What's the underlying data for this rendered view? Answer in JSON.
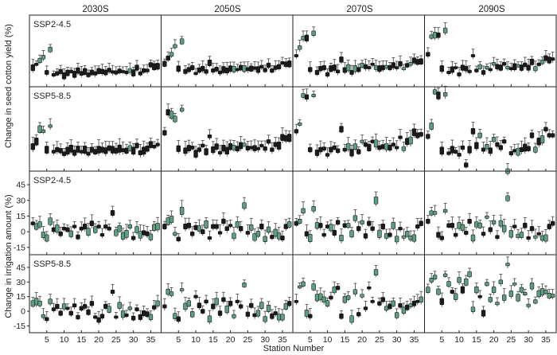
{
  "chart_data": {
    "type": "box",
    "periods": [
      "2030S",
      "2050S",
      "2070S",
      "2090S"
    ],
    "ylabel_top": "Change in seed cotton yield (%)",
    "ylabel_bottom": "Change in irrigation amount (%)",
    "xlabel": "Station Number",
    "x_ticks": [
      "5",
      "10",
      "15",
      "20",
      "25",
      "30",
      "35"
    ],
    "y_ticks": [
      "-15",
      "0",
      "15",
      "30",
      "45"
    ],
    "x_range": [
      0,
      38
    ],
    "colors": {
      "dark": "#1b1b1b",
      "green": "#5e9e82",
      "whisker": "#444444"
    },
    "panels": [
      {
        "row": 0,
        "scenario": "SSP2-4.5",
        "variable": "Change in seed cotton yield (%)",
        "ylim": [
          -20,
          130
        ],
        "series": [
          {
            "period": "2030S",
            "medians": [
              20,
              27,
              35,
              42,
              10,
              58,
              5,
              8,
              12,
              3,
              9,
              12,
              6,
              14,
              8,
              12,
              5,
              10,
              8,
              13,
              12,
              10,
              15,
              11,
              10,
              13,
              12,
              10,
              14,
              9,
              20,
              8,
              14,
              14,
              26,
              22,
              23
            ]
          },
          {
            "period": "2050S",
            "medians": [
              28,
              40,
              48,
              65,
              18,
              75,
              12,
              16,
              20,
              8,
              15,
              18,
              12,
              30,
              14,
              17,
              10,
              16,
              14,
              18,
              17,
              16,
              20,
              18,
              17,
              18,
              19,
              16,
              22,
              15,
              25,
              14,
              20,
              22,
              30,
              27,
              28
            ]
          },
          {
            "period": "2070S",
            "medians": [
              45,
              62,
              82,
              82,
              16,
              92,
              10,
              18,
              20,
              6,
              18,
              20,
              12,
              37,
              15,
              20,
              10,
              18,
              16,
              25,
              22,
              20,
              27,
              20,
              18,
              20,
              22,
              20,
              25,
              20,
              28,
              18,
              25,
              28,
              35,
              32,
              33
            ]
          },
          {
            "period": "2090S",
            "medians": [
              48,
              85,
              88,
              88,
              18,
              98,
              10,
              16,
              20,
              6,
              20,
              18,
              12,
              45,
              14,
              22,
              10,
              20,
              16,
              28,
              22,
              20,
              28,
              20,
              18,
              22,
              24,
              20,
              26,
              20,
              32,
              18,
              27,
              32,
              40,
              36,
              38
            ]
          }
        ]
      },
      {
        "row": 1,
        "scenario": "SSP5-8.5",
        "variable": "Change in seed cotton yield (%)",
        "ylim": [
          -30,
          135
        ],
        "series": [
          {
            "period": "2030S",
            "medians": [
              18,
              28,
              52,
              48,
              12,
              58,
              8,
              12,
              10,
              4,
              10,
              14,
              6,
              13,
              8,
              12,
              4,
              12,
              8,
              12,
              12,
              10,
              15,
              12,
              10,
              14,
              11,
              10,
              15,
              10,
              20,
              6,
              10,
              14,
              22,
              18,
              22
            ]
          },
          {
            "period": "2050S",
            "medians": [
              45,
              85,
              80,
              72,
              14,
              90,
              10,
              15,
              16,
              4,
              12,
              20,
              8,
              38,
              12,
              18,
              6,
              15,
              10,
              18,
              16,
              14,
              20,
              22,
              15,
              16,
              15,
              14,
              20,
              14,
              28,
              12,
              22,
              20,
              36,
              34,
              35
            ]
          },
          {
            "period": "2070S",
            "medians": [
              48,
              62,
              118,
              115,
              12,
              118,
              6,
              12,
              14,
              2,
              12,
              16,
              10,
              52,
              12,
              18,
              6,
              18,
              8,
              28,
              22,
              16,
              28,
              24,
              16,
              18,
              18,
              16,
              22,
              16,
              36,
              14,
              28,
              30,
              46,
              40,
              42
            ]
          },
          {
            "period": "2090S",
            "medians": [
              38,
              58,
              125,
              118,
              10,
              120,
              5,
              12,
              8,
              2,
              16,
              -18,
              12,
              48,
              20,
              40,
              12,
              18,
              10,
              32,
              22,
              16,
              28,
              -30,
              5,
              10,
              8,
              12,
              16,
              14,
              40,
              12,
              28,
              32,
              52,
              40,
              40
            ]
          }
        ]
      },
      {
        "row": 2,
        "scenario": "SSP2-4.5",
        "variable": "Change in irrigation amount (%)",
        "ylim": [
          -22,
          58
        ],
        "series": [
          {
            "period": "2030S",
            "medians": [
              8,
              5,
              7,
              -3,
              -6,
              10,
              2,
              3,
              -2,
              3,
              2,
              -2,
              5,
              -5,
              3,
              5,
              0,
              8,
              2,
              5,
              -3,
              5,
              3,
              18,
              -1,
              3,
              -4,
              -2,
              5,
              -6,
              2,
              -3,
              -1,
              -2,
              -5,
              4,
              5
            ]
          },
          {
            "period": "2050S",
            "medians": [
              5,
              10,
              12,
              -2,
              -7,
              20,
              5,
              6,
              -2,
              4,
              3,
              0,
              7,
              -6,
              5,
              5,
              -1,
              10,
              3,
              6,
              -4,
              7,
              3,
              25,
              -1,
              4,
              -5,
              -2,
              5,
              -7,
              2,
              -5,
              -1,
              -4,
              -6,
              5,
              7
            ]
          },
          {
            "period": "2070S",
            "medians": [
              8,
              10,
              20,
              -2,
              -6,
              22,
              6,
              6,
              -3,
              5,
              4,
              -1,
              9,
              -6,
              6,
              6,
              -2,
              13,
              3,
              9,
              -4,
              8,
              3,
              30,
              -2,
              5,
              -4,
              -3,
              6,
              -7,
              3,
              -5,
              -2,
              -6,
              -6,
              5,
              8
            ]
          },
          {
            "period": "2090S",
            "medians": [
              10,
              18,
              18,
              -3,
              -6,
              20,
              6,
              6,
              -3,
              6,
              4,
              -1,
              10,
              -6,
              7,
              6,
              -2,
              14,
              2,
              9,
              -5,
              8,
              3,
              32,
              -2,
              5,
              -4,
              -3,
              6,
              -6,
              3,
              -5,
              -2,
              -6,
              -6,
              5,
              8
            ]
          }
        ]
      },
      {
        "row": 3,
        "scenario": "SSP5-8.5",
        "variable": "Change in irrigation amount (%)",
        "ylim": [
          -22,
          58
        ],
        "series": [
          {
            "period": "2030S",
            "medians": [
              8,
              10,
              8,
              -5,
              -8,
              10,
              2,
              5,
              -2,
              5,
              3,
              -2,
              6,
              -6,
              3,
              5,
              -1,
              8,
              -6,
              -9,
              -5,
              5,
              2,
              20,
              -6,
              6,
              -3,
              -4,
              3,
              -7,
              2,
              -6,
              -2,
              -3,
              -6,
              4,
              8
            ]
          },
          {
            "period": "2050S",
            "medians": [
              5,
              20,
              18,
              -5,
              -8,
              22,
              5,
              8,
              -3,
              15,
              6,
              0,
              10,
              -8,
              5,
              10,
              -2,
              12,
              2,
              8,
              -5,
              10,
              5,
              27,
              -3,
              6,
              -4,
              -2,
              6,
              -8,
              3,
              -5,
              -2,
              -6,
              -6,
              5,
              8
            ]
          },
          {
            "period": "2070S",
            "medians": [
              10,
              25,
              28,
              -2,
              -5,
              25,
              14,
              15,
              12,
              8,
              14,
              22,
              24,
              -5,
              12,
              14,
              -8,
              20,
              -3,
              16,
              3,
              24,
              10,
              40,
              8,
              12,
              3,
              5,
              8,
              -4,
              6,
              1,
              4,
              6,
              8,
              10,
              12
            ]
          },
          {
            "period": "2090S",
            "medians": [
              22,
              32,
              35,
              20,
              10,
              37,
              28,
              20,
              15,
              32,
              22,
              30,
              38,
              2,
              22,
              15,
              -2,
              28,
              12,
              22,
              8,
              30,
              14,
              48,
              18,
              28,
              14,
              22,
              18,
              6,
              26,
              10,
              18,
              20,
              20,
              16,
              16
            ]
          }
        ]
      }
    ]
  }
}
